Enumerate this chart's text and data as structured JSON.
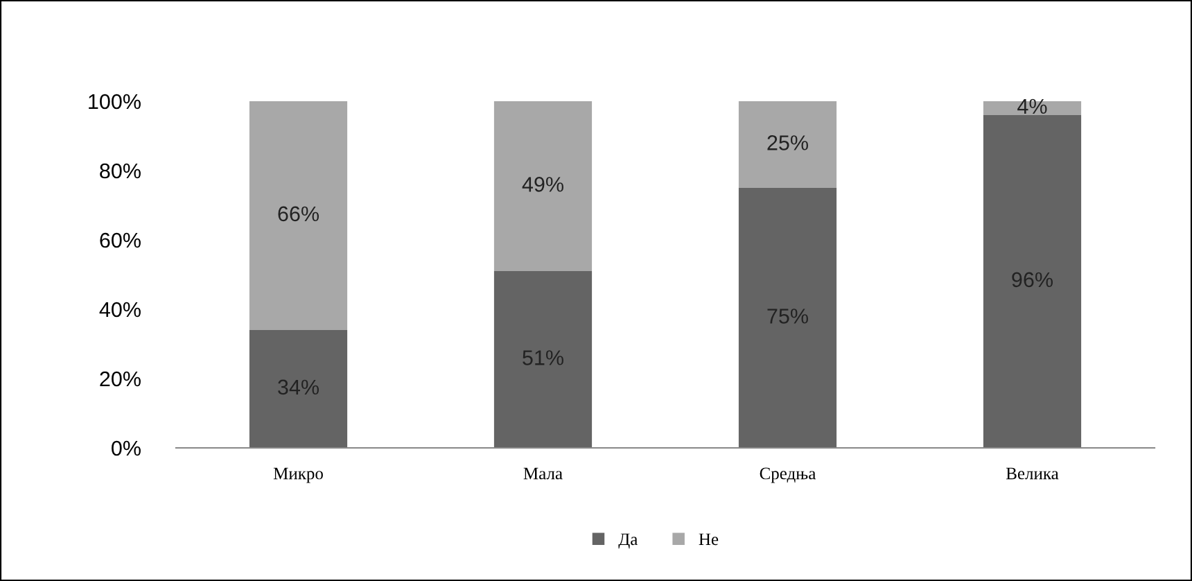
{
  "chart_data": {
    "type": "bar",
    "stacked": true,
    "categories": [
      "Микро",
      "Мала",
      "Средња",
      "Велика"
    ],
    "series": [
      {
        "name": "Да",
        "color": "#646464",
        "values": [
          34,
          51,
          75,
          96
        ],
        "value_labels": [
          "34%",
          "51%",
          "75%",
          "96%"
        ]
      },
      {
        "name": "Не",
        "color": "#a8a8a8",
        "values": [
          66,
          49,
          25,
          4
        ],
        "value_labels": [
          "66%",
          "49%",
          "25%",
          "4%"
        ]
      }
    ],
    "ylim": [
      0,
      100
    ],
    "yticks": [
      {
        "value": 0,
        "label": "0%"
      },
      {
        "value": 20,
        "label": "20%"
      },
      {
        "value": 40,
        "label": "40%"
      },
      {
        "value": 60,
        "label": "60%"
      },
      {
        "value": 80,
        "label": "80%"
      },
      {
        "value": 100,
        "label": "100%"
      }
    ],
    "grid": false,
    "legend": "bottom"
  }
}
